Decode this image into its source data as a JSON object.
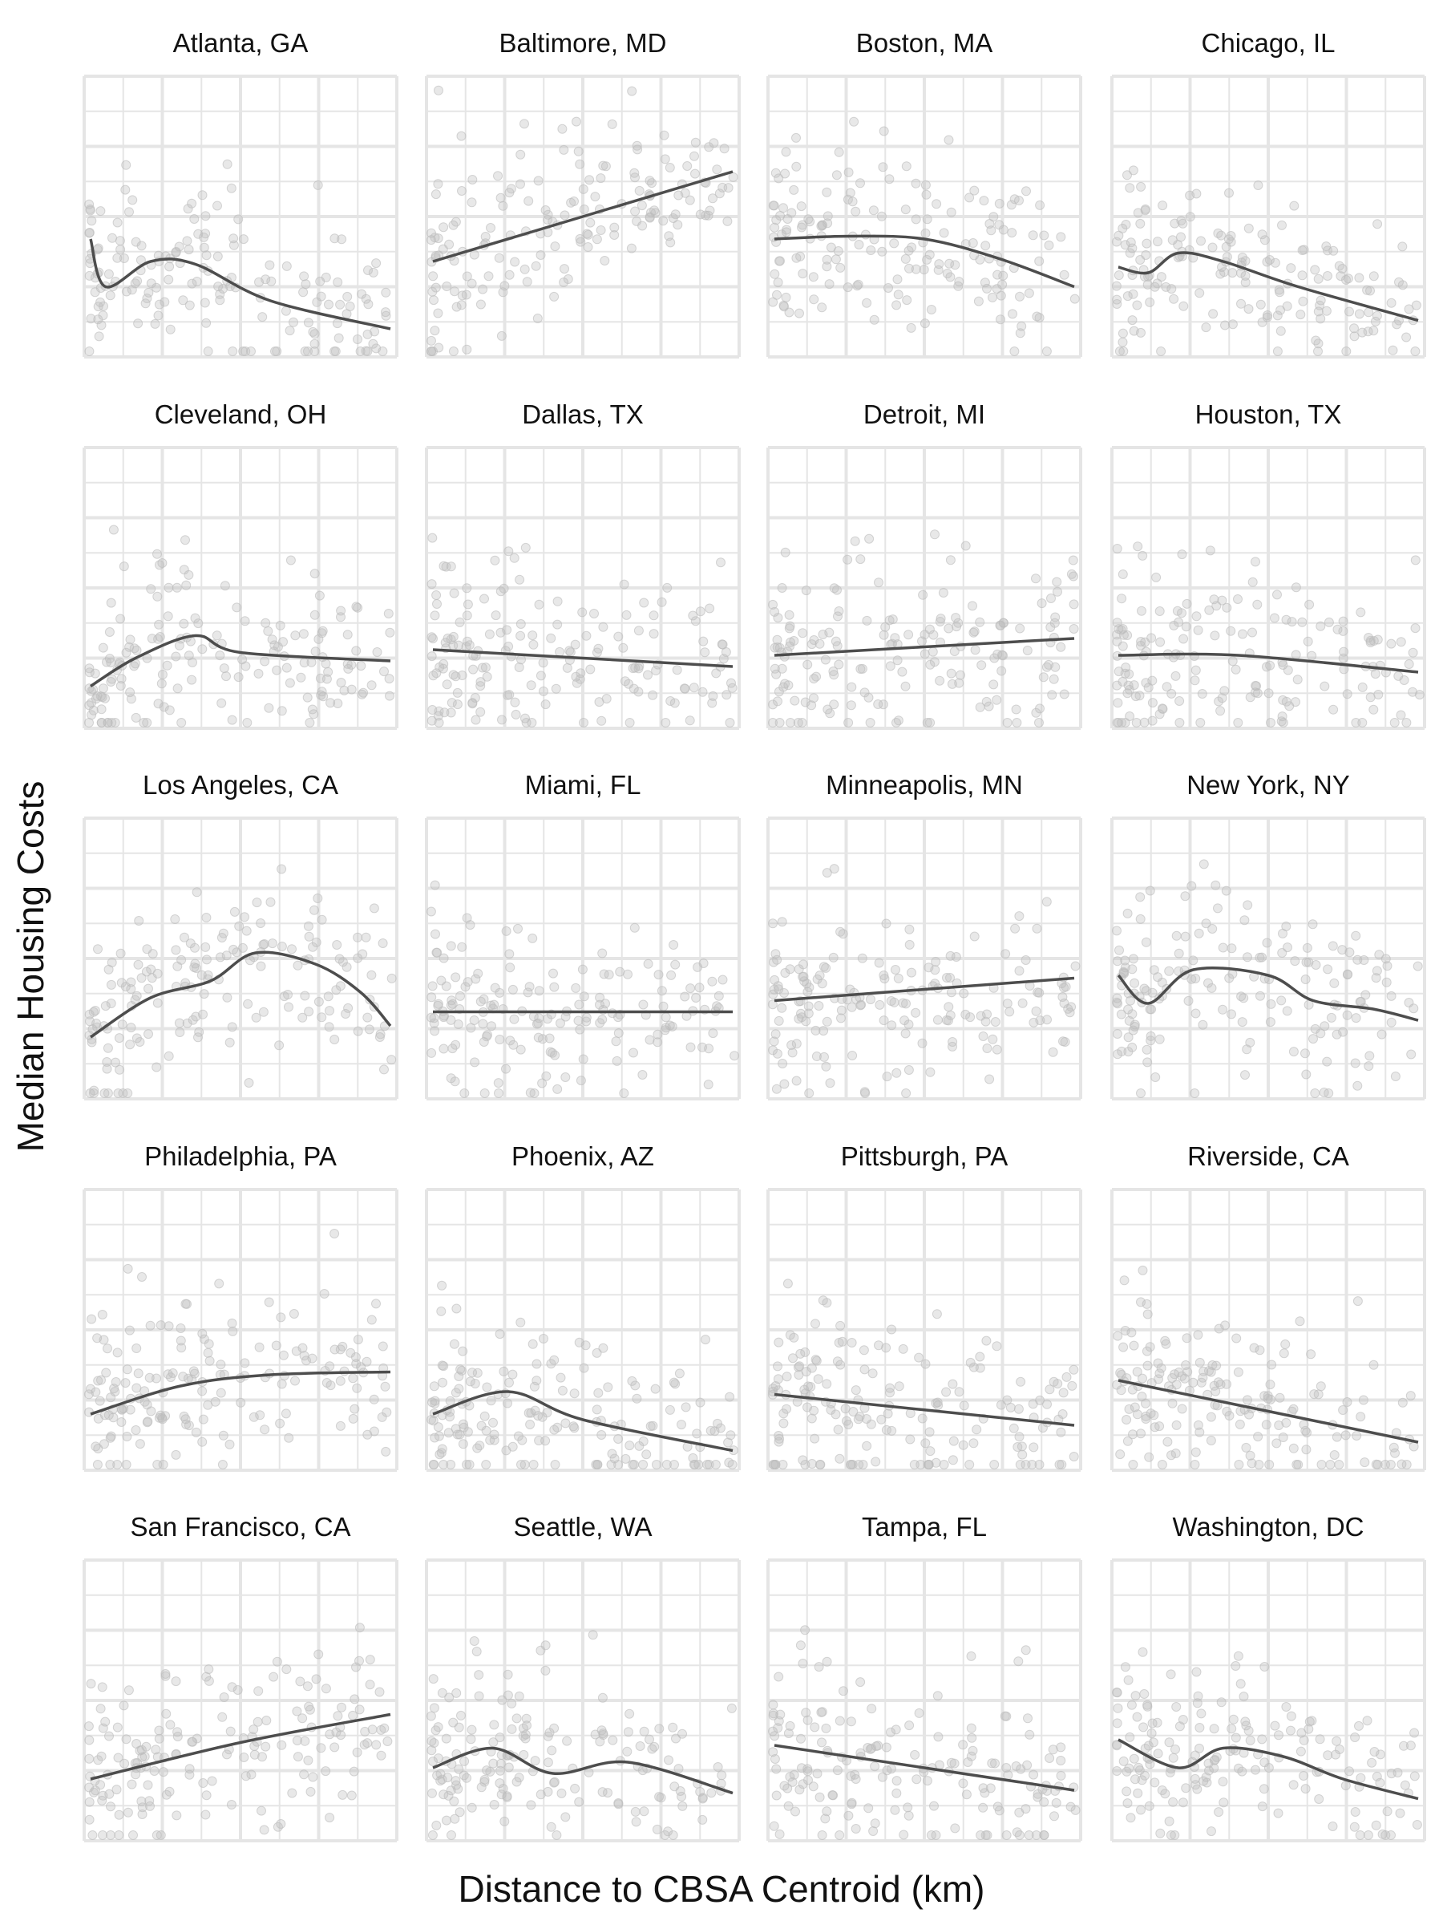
{
  "chart_data": {
    "type": "scatter",
    "xlabel": "Distance to CBSA Centroid (km)",
    "ylabel": "Median Housing Costs",
    "grid": true,
    "tick_labels_shown": false,
    "point_color": "#bdbdbd",
    "trend_color": "#4d4d4d",
    "grid_color": "#e5e5e5",
    "panels": [
      {
        "title": "Atlanta, GA",
        "trend": [
          [
            0,
            0.42
          ],
          [
            0.05,
            0.25
          ],
          [
            0.2,
            0.34
          ],
          [
            0.35,
            0.33
          ],
          [
            0.6,
            0.2
          ],
          [
            1.0,
            0.1
          ]
        ]
      },
      {
        "title": "Baltimore, MD",
        "trend": [
          [
            0,
            0.34
          ],
          [
            1.0,
            0.66
          ]
        ]
      },
      {
        "title": "Boston, MA",
        "trend": [
          [
            0,
            0.42
          ],
          [
            0.25,
            0.43
          ],
          [
            0.5,
            0.42
          ],
          [
            0.75,
            0.35
          ],
          [
            1.0,
            0.25
          ]
        ]
      },
      {
        "title": "Chicago, IL",
        "trend": [
          [
            0,
            0.32
          ],
          [
            0.1,
            0.3
          ],
          [
            0.2,
            0.37
          ],
          [
            0.35,
            0.34
          ],
          [
            0.6,
            0.25
          ],
          [
            1.0,
            0.13
          ]
        ]
      },
      {
        "title": "Cleveland, OH",
        "trend": [
          [
            0,
            0.15
          ],
          [
            0.15,
            0.25
          ],
          [
            0.35,
            0.33
          ],
          [
            0.5,
            0.27
          ],
          [
            1.0,
            0.24
          ]
        ]
      },
      {
        "title": "Dallas, TX",
        "trend": [
          [
            0,
            0.28
          ],
          [
            1.0,
            0.22
          ]
        ]
      },
      {
        "title": "Detroit, MI",
        "trend": [
          [
            0,
            0.26
          ],
          [
            1.0,
            0.32
          ]
        ]
      },
      {
        "title": "Houston, TX",
        "trend": [
          [
            0,
            0.26
          ],
          [
            0.4,
            0.26
          ],
          [
            1.0,
            0.2
          ]
        ]
      },
      {
        "title": "Los Angeles, CA",
        "trend": [
          [
            0,
            0.22
          ],
          [
            0.2,
            0.36
          ],
          [
            0.4,
            0.42
          ],
          [
            0.55,
            0.52
          ],
          [
            0.75,
            0.48
          ],
          [
            0.9,
            0.38
          ],
          [
            1.0,
            0.26
          ]
        ]
      },
      {
        "title": "Miami, FL",
        "trend": [
          [
            0,
            0.31
          ],
          [
            1.0,
            0.31
          ]
        ]
      },
      {
        "title": "Minneapolis, MN",
        "trend": [
          [
            0,
            0.35
          ],
          [
            1.0,
            0.43
          ]
        ]
      },
      {
        "title": "New York, NY",
        "trend": [
          [
            0,
            0.44
          ],
          [
            0.1,
            0.34
          ],
          [
            0.25,
            0.46
          ],
          [
            0.5,
            0.44
          ],
          [
            0.65,
            0.35
          ],
          [
            0.85,
            0.32
          ],
          [
            1.0,
            0.28
          ]
        ]
      },
      {
        "title": "Philadelphia, PA",
        "trend": [
          [
            0,
            0.2
          ],
          [
            0.3,
            0.3
          ],
          [
            0.6,
            0.34
          ],
          [
            1.0,
            0.35
          ]
        ]
      },
      {
        "title": "Phoenix, AZ",
        "trend": [
          [
            0,
            0.2
          ],
          [
            0.25,
            0.28
          ],
          [
            0.5,
            0.18
          ],
          [
            1.0,
            0.07
          ]
        ]
      },
      {
        "title": "Pittsburgh, PA",
        "trend": [
          [
            0,
            0.27
          ],
          [
            1.0,
            0.16
          ]
        ]
      },
      {
        "title": "Riverside, CA",
        "trend": [
          [
            0,
            0.32
          ],
          [
            1.0,
            0.1
          ]
        ]
      },
      {
        "title": "San Francisco, CA",
        "trend": [
          [
            0,
            0.22
          ],
          [
            0.5,
            0.35
          ],
          [
            1.0,
            0.45
          ]
        ]
      },
      {
        "title": "Seattle, WA",
        "trend": [
          [
            0,
            0.26
          ],
          [
            0.2,
            0.33
          ],
          [
            0.4,
            0.24
          ],
          [
            0.65,
            0.28
          ],
          [
            1.0,
            0.17
          ]
        ]
      },
      {
        "title": "Tampa, FL",
        "trend": [
          [
            0,
            0.34
          ],
          [
            1.0,
            0.18
          ]
        ]
      },
      {
        "title": "Washington, DC",
        "trend": [
          [
            0,
            0.36
          ],
          [
            0.2,
            0.26
          ],
          [
            0.35,
            0.33
          ],
          [
            0.55,
            0.3
          ],
          [
            0.75,
            0.22
          ],
          [
            1.0,
            0.15
          ]
        ]
      }
    ]
  }
}
